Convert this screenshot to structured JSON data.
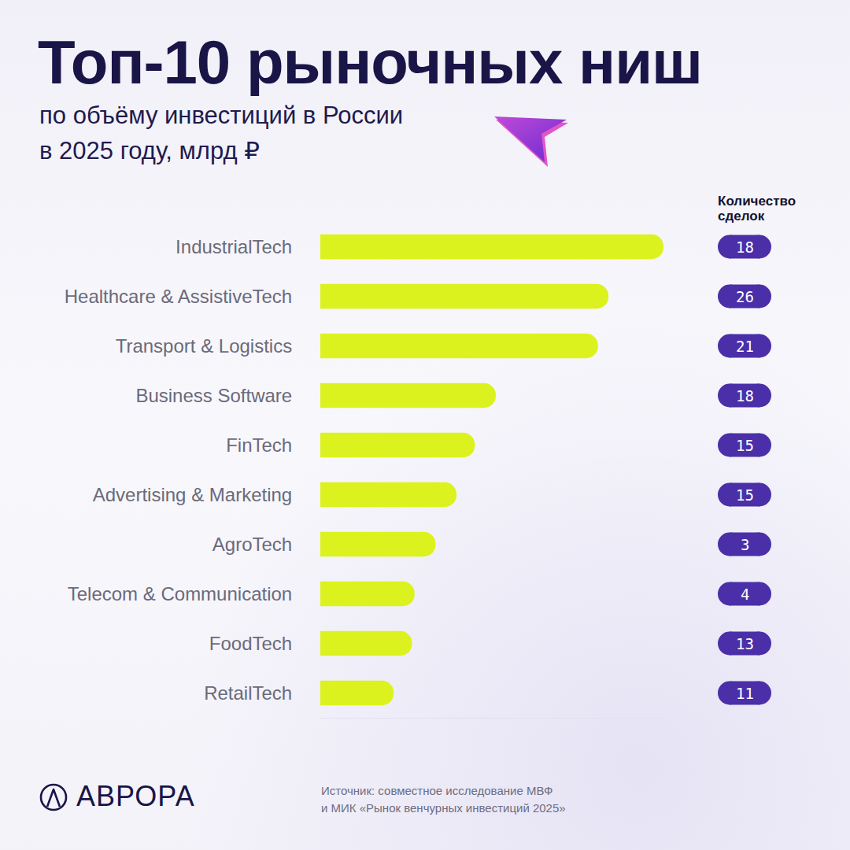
{
  "chart_data": {
    "type": "bar",
    "orientation": "horizontal",
    "title": "Топ-10 рыночных ниш",
    "subtitle": "по объёму инвестиций в России\nв 2025 году, млрд ₽",
    "categories": [
      "IndustrialTech",
      "Healthcare & AssistiveTech",
      "Transport & Logistics",
      "Business Software",
      "FinTech",
      "Advertising & Marketing",
      "AgroTech",
      "Telecom & Communication",
      "FoodTech",
      "RetailTech"
    ],
    "values": [
      13.1,
      11.0,
      10.6,
      6.7,
      5.9,
      5.2,
      4.4,
      3.6,
      3.5,
      2.8
    ],
    "color": "#dcf21e",
    "xlim": [
      0,
      13.1
    ],
    "tick_labels": "y",
    "grid": false,
    "data_labels": false,
    "deal_counts_title": "Количество\nсделок",
    "deal_counts": [
      18,
      26,
      21,
      18,
      15,
      15,
      3,
      4,
      13,
      11
    ],
    "brand": "АВРОРА",
    "source": "Источник: совместное исследование МВФ\nи МИК «Рынок венчурных инвестиций 2025»"
  }
}
